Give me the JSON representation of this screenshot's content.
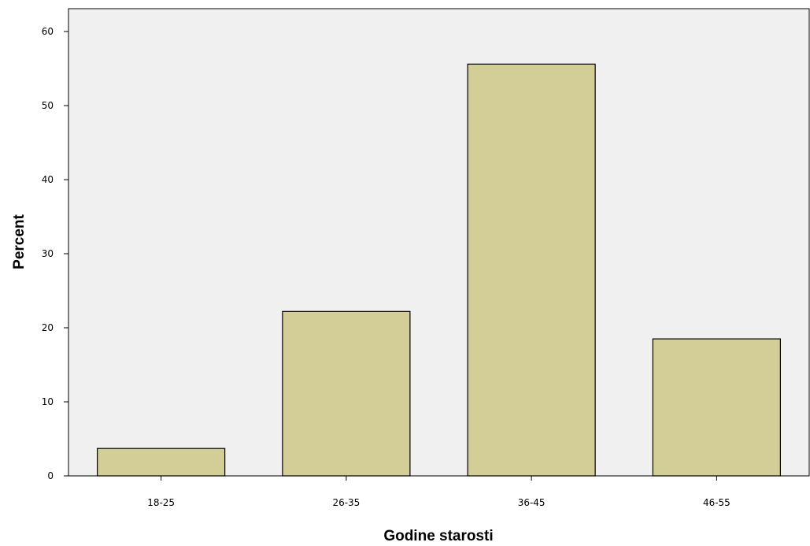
{
  "chart_data": {
    "type": "bar",
    "categories": [
      "18-25",
      "26-35",
      "36-45",
      "46-55"
    ],
    "values": [
      3.7,
      22.2,
      55.6,
      18.5
    ],
    "title": "",
    "xlabel": "Godine starosti",
    "ylabel": "Percent",
    "ylim": [
      0,
      60
    ],
    "yticks": [
      "0",
      "10",
      "20",
      "30",
      "40",
      "50",
      "60"
    ],
    "grid": false,
    "legend": "none",
    "colors": {
      "plot_background": "#f0f0f0",
      "bar_fill": "#d3ce97",
      "bar_stroke": "#000000",
      "axis": "#000000"
    }
  }
}
